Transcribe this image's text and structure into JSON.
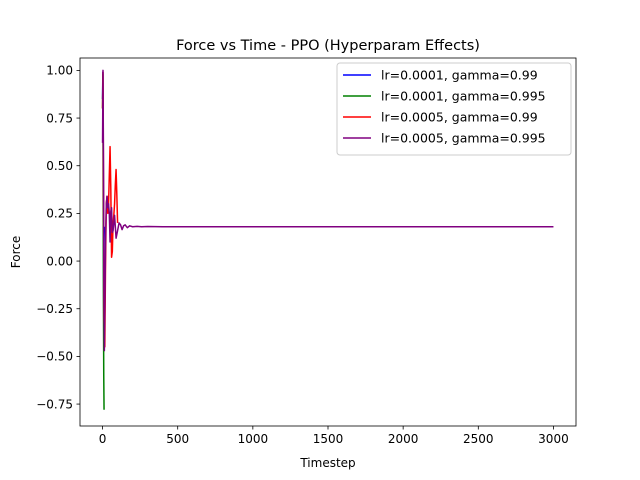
{
  "chart_data": {
    "type": "line",
    "title": "Force vs Time - PPO (Hyperparam Effects)",
    "xlabel": "Timestep",
    "ylabel": "Force",
    "xlim": [
      -150,
      3150
    ],
    "ylim": [
      -0.865,
      1.065
    ],
    "xticks": [
      0,
      500,
      1000,
      1500,
      2000,
      2500,
      3000
    ],
    "yticks": [
      -0.75,
      -0.5,
      -0.25,
      0.0,
      0.25,
      0.5,
      0.75,
      1.0
    ],
    "ytick_labels": [
      "−0.75",
      "−0.50",
      "−0.25",
      "0.00",
      "0.25",
      "0.50",
      "0.75",
      "1.00"
    ],
    "grid": false,
    "legend_position": "top-right",
    "series": [
      {
        "name": "lr=0.0001, gamma=0.99",
        "color": "#0000ff",
        "x": [
          0,
          2,
          4,
          6,
          8,
          10,
          12
        ],
        "y": [
          0.85,
          0.99,
          0.7,
          0.2,
          -0.3,
          0.1,
          0.18
        ]
      },
      {
        "name": "lr=0.0001, gamma=0.995",
        "color": "#008000",
        "x": [
          0,
          2,
          4,
          6,
          8,
          10
        ],
        "y": [
          0.8,
          0.98,
          0.4,
          -0.2,
          -0.6,
          -0.78
        ]
      },
      {
        "name": "lr=0.0005, gamma=0.99",
        "color": "#ff0000",
        "x": [
          0,
          3,
          6,
          10,
          15,
          20,
          25,
          30,
          35,
          40,
          45,
          50,
          55,
          60,
          65,
          70,
          75,
          80,
          85,
          90,
          95,
          100
        ],
        "y": [
          0.8,
          0.99,
          0.4,
          -0.3,
          -0.45,
          0.0,
          0.3,
          0.34,
          0.25,
          0.3,
          0.45,
          0.6,
          0.38,
          0.02,
          0.05,
          0.2,
          0.24,
          0.3,
          0.4,
          0.48,
          0.35,
          0.2
        ]
      },
      {
        "name": "lr=0.0005, gamma=0.995",
        "color": "#800080",
        "x": [
          0,
          3,
          6,
          9,
          12,
          16,
          20,
          25,
          30,
          35,
          40,
          45,
          50,
          55,
          60,
          65,
          70,
          75,
          80,
          90,
          100,
          110,
          120,
          130,
          140,
          150,
          165,
          180,
          200,
          230,
          260,
          300,
          400,
          600,
          1000,
          1500,
          2000,
          2500,
          3000
        ],
        "y": [
          0.62,
          1.0,
          0.55,
          -0.1,
          -0.47,
          -0.2,
          0.1,
          0.3,
          0.34,
          0.28,
          0.3,
          0.25,
          0.1,
          0.26,
          0.28,
          0.15,
          0.16,
          0.2,
          0.24,
          0.12,
          0.16,
          0.2,
          0.19,
          0.165,
          0.185,
          0.19,
          0.175,
          0.185,
          0.18,
          0.182,
          0.18,
          0.181,
          0.18,
          0.18,
          0.18,
          0.18,
          0.18,
          0.18,
          0.18
        ]
      }
    ]
  }
}
